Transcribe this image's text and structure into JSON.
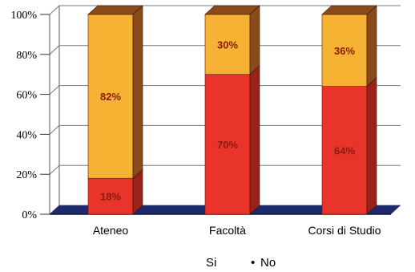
{
  "chart_data": {
    "type": "bar",
    "stacked": true,
    "three_d": true,
    "categories": [
      "Ateneo",
      "Facoltà",
      "Corsi di Studio"
    ],
    "series": [
      {
        "name": "Si",
        "values": [
          18,
          70,
          64
        ],
        "labels": [
          "18%",
          "70%",
          "64%"
        ],
        "color": "#e8342a",
        "side_color": "#9a2218"
      },
      {
        "name": "No",
        "values": [
          82,
          30,
          36
        ],
        "labels": [
          "82%",
          "30%",
          "36%"
        ],
        "color": "#f5b233",
        "side_color": "#8a4a1a"
      }
    ],
    "y_ticks": [
      "0%",
      "20%",
      "40%",
      "60%",
      "80%",
      "100%"
    ],
    "ylim": [
      0,
      100
    ],
    "grid": true,
    "legend_position": "bottom",
    "legend_marker": "•"
  }
}
